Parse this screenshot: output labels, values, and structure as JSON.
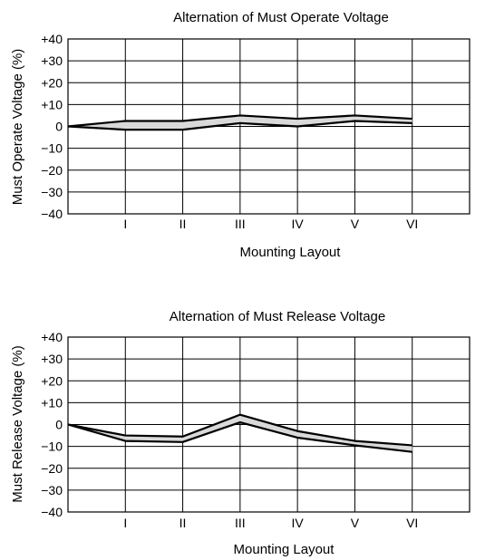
{
  "chart_data": [
    {
      "type": "area",
      "title": "Alternation of Must Operate Voltage",
      "xlabel": "Mounting  Layout",
      "ylabel": "Must Operate Voltage (%)",
      "ylim": [
        -40,
        40
      ],
      "yticks": [
        "+40",
        "+30",
        "+20",
        "+10",
        "0",
        "−10",
        "−20",
        "−30",
        "−40"
      ],
      "ytick_values": [
        40,
        30,
        20,
        10,
        0,
        -10,
        -20,
        -30,
        -40
      ],
      "categories": [
        "I",
        "II",
        "III",
        "IV",
        "V",
        "VI"
      ],
      "grid": true,
      "fill_color": "#d9d9d9",
      "series": [
        {
          "x": [
            0,
            1,
            2,
            3,
            4,
            5,
            6
          ],
          "values": [
            0,
            2.5,
            2.5,
            5,
            3.5,
            5,
            3.5
          ]
        },
        {
          "x": [
            0,
            1,
            2,
            3,
            4,
            5,
            6
          ],
          "values": [
            0,
            -1.5,
            -1.5,
            1.5,
            0,
            2.5,
            1.5
          ]
        }
      ]
    },
    {
      "type": "area",
      "title": "Alternation of Must Release Voltage",
      "xlabel": "Mounting  Layout",
      "ylabel": "Must Release Voltage (%)",
      "ylim": [
        -40,
        40
      ],
      "yticks": [
        "+40",
        "+30",
        "+20",
        "+10",
        "0",
        "−10",
        "−20",
        "−30",
        "−40"
      ],
      "ytick_values": [
        40,
        30,
        20,
        10,
        0,
        -10,
        -20,
        -30,
        -40
      ],
      "categories": [
        "I",
        "II",
        "III",
        "IV",
        "V",
        "VI"
      ],
      "grid": true,
      "fill_color": "#d9d9d9",
      "series": [
        {
          "x": [
            0,
            1,
            2,
            3,
            4,
            5,
            6
          ],
          "values": [
            0,
            -5,
            -5.5,
            4.5,
            -3,
            -7.5,
            -9.5
          ]
        },
        {
          "x": [
            0,
            1,
            2,
            3,
            4,
            5,
            6
          ],
          "values": [
            0,
            -7.5,
            -8,
            1,
            -6,
            -9.5,
            -12.5
          ]
        }
      ]
    }
  ]
}
